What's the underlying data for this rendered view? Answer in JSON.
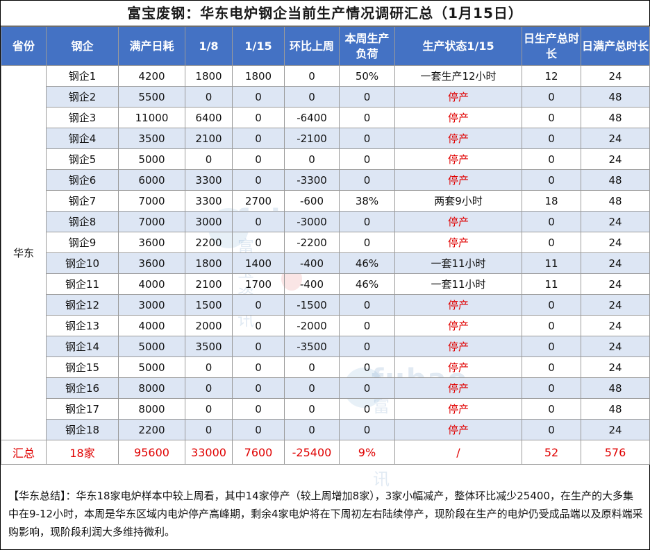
{
  "title": "富宝废钢：华东电炉钢企当前生产情况调研汇总（1月15日）",
  "columns": [
    "省份",
    "钢企",
    "满产日耗",
    "1/8",
    "1/15",
    "环比上周",
    "本周生产负荷",
    "生产状态1/15",
    "日生产总时长",
    "日满产总时长"
  ],
  "province": "华东",
  "rows": [
    {
      "company": "钢企1",
      "full": "4200",
      "d18": "1800",
      "d115": "1800",
      "change": "0",
      "load": "50%",
      "status": "一套生产12小时",
      "hours": "12",
      "full_hours": "24"
    },
    {
      "company": "钢企2",
      "full": "5500",
      "d18": "0",
      "d115": "0",
      "change": "0",
      "load": "0",
      "status": "停产",
      "hours": "0",
      "full_hours": "48"
    },
    {
      "company": "钢企3",
      "full": "11000",
      "d18": "6400",
      "d115": "0",
      "change": "-6400",
      "load": "0",
      "status": "停产",
      "hours": "0",
      "full_hours": "48"
    },
    {
      "company": "钢企4",
      "full": "3500",
      "d18": "2100",
      "d115": "0",
      "change": "-2100",
      "load": "0",
      "status": "停产",
      "hours": "0",
      "full_hours": "24"
    },
    {
      "company": "钢企5",
      "full": "5000",
      "d18": "0",
      "d115": "0",
      "change": "0",
      "load": "0",
      "status": "停产",
      "hours": "0",
      "full_hours": "24"
    },
    {
      "company": "钢企6",
      "full": "6000",
      "d18": "3300",
      "d115": "0",
      "change": "-3300",
      "load": "0",
      "status": "停产",
      "hours": "0",
      "full_hours": "48"
    },
    {
      "company": "钢企7",
      "full": "7000",
      "d18": "3300",
      "d115": "2700",
      "change": "-600",
      "load": "38%",
      "status": "两套9小时",
      "hours": "18",
      "full_hours": "48"
    },
    {
      "company": "钢企8",
      "full": "7000",
      "d18": "3000",
      "d115": "0",
      "change": "-3000",
      "load": "0",
      "status": "停产",
      "hours": "0",
      "full_hours": "24"
    },
    {
      "company": "钢企9",
      "full": "3600",
      "d18": "2200",
      "d115": "0",
      "change": "-2200",
      "load": "0",
      "status": "停产",
      "hours": "0",
      "full_hours": "24"
    },
    {
      "company": "钢企10",
      "full": "3600",
      "d18": "1800",
      "d115": "1400",
      "change": "-400",
      "load": "46%",
      "status": "一套11小时",
      "hours": "11",
      "full_hours": "24"
    },
    {
      "company": "钢企11",
      "full": "4000",
      "d18": "2100",
      "d115": "1700",
      "change": "-400",
      "load": "46%",
      "status": "一套11小时",
      "hours": "11",
      "full_hours": "24"
    },
    {
      "company": "钢企12",
      "full": "3000",
      "d18": "1500",
      "d115": "0",
      "change": "-1500",
      "load": "0",
      "status": "停产",
      "hours": "0",
      "full_hours": "24"
    },
    {
      "company": "钢企13",
      "full": "4000",
      "d18": "2000",
      "d115": "0",
      "change": "-2000",
      "load": "0",
      "status": "停产",
      "hours": "0",
      "full_hours": "24"
    },
    {
      "company": "钢企14",
      "full": "5000",
      "d18": "3500",
      "d115": "0",
      "change": "-3500",
      "load": "0",
      "status": "停产",
      "hours": "0",
      "full_hours": "24"
    },
    {
      "company": "钢企15",
      "full": "5000",
      "d18": "0",
      "d115": "0",
      "change": "0",
      "load": "0",
      "status": "停产",
      "hours": "0",
      "full_hours": "24"
    },
    {
      "company": "钢企16",
      "full": "8000",
      "d18": "0",
      "d115": "0",
      "change": "0",
      "load": "0",
      "status": "停产",
      "hours": "0",
      "full_hours": "48"
    },
    {
      "company": "钢企17",
      "full": "8000",
      "d18": "0",
      "d115": "0",
      "change": "0",
      "load": "0",
      "status": "停产",
      "hours": "0",
      "full_hours": "48"
    },
    {
      "company": "钢企18",
      "full": "2200",
      "d18": "0",
      "d115": "0",
      "change": "0",
      "load": "0",
      "status": "停产",
      "hours": "0",
      "full_hours": "24"
    }
  ],
  "total": {
    "label": "汇总",
    "company": "18家",
    "full": "95600",
    "d18": "33000",
    "d115": "7600",
    "change": "-25400",
    "load": "9%",
    "status": "/",
    "hours": "52",
    "full_hours": "576"
  },
  "summary": "【华东总结】：华东18家电炉样本中较上周看，其中14家停产（较上周增加8家），3家小幅减产，整体环比减少25400，在生产的大多集中在9-12小时，本周是华东区域内电炉停产高峰期，剩余4家电炉将在下周初左右陆续停产，现阶段在生产的电炉仍受成品端以及原料端采购影响，现阶段利润大多维持微利。",
  "watermark": {
    "brand": "fubao",
    "cn": "富宝资讯"
  },
  "colors": {
    "header_bg": "#4472c4",
    "alt_row": "#dde6f4",
    "stopped": "#e00000"
  }
}
